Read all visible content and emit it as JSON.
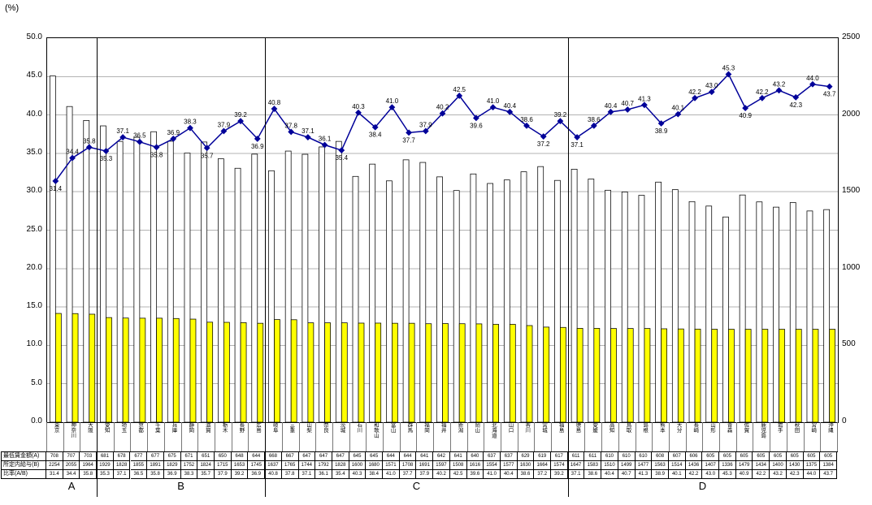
{
  "page": {
    "y_left_unit": "(%)"
  },
  "axes": {
    "left_ticks": [
      "0.0",
      "5.0",
      "10.0",
      "15.0",
      "20.0",
      "25.0",
      "30.0",
      "35.0",
      "40.0",
      "45.0",
      "50.0"
    ],
    "right_ticks": [
      "0",
      "500",
      "1000",
      "1500",
      "2000",
      "2500"
    ],
    "left_max": 50,
    "right_max": 2500
  },
  "table": {
    "row_labels": [
      "最低賃金額(A)",
      "所定内給与(B)",
      "比率(A/B)"
    ]
  },
  "groups": [
    {
      "label": "A",
      "count": 3
    },
    {
      "label": "B",
      "count": 10
    },
    {
      "label": "C",
      "count": 18
    },
    {
      "label": "D",
      "count": 16
    }
  ],
  "chart_data": {
    "type": "bar+line",
    "title": "",
    "categories": [
      "東京",
      "神奈川",
      "大阪",
      "愛知",
      "埼玉",
      "京都",
      "千葉",
      "兵庫",
      "静岡",
      "滋賀",
      "栃木",
      "長野",
      "広島",
      "岐阜",
      "三重",
      "山梨",
      "奈良",
      "茨城",
      "石川",
      "和歌山",
      "富山",
      "群馬",
      "福岡",
      "福井",
      "新潟",
      "岡山",
      "北海道",
      "山口",
      "香川",
      "宮城",
      "福島",
      "徳島",
      "愛媛",
      "高知",
      "鳥取",
      "島根",
      "熊本",
      "大分",
      "長崎",
      "山形",
      "青森",
      "佐賀",
      "鹿児島",
      "岩手",
      "秋田",
      "宮崎",
      "沖縄"
    ],
    "series": [
      {
        "name": "最低賃金額(A)",
        "type": "bar",
        "axis": "right",
        "color": "#FFFF00",
        "values": [
          708,
          707,
          703,
          681,
          678,
          677,
          677,
          675,
          671,
          651,
          650,
          648,
          644,
          668,
          667,
          647,
          647,
          647,
          645,
          645,
          644,
          644,
          641,
          642,
          641,
          640,
          637,
          637,
          629,
          619,
          617,
          611,
          611,
          610,
          610,
          610,
          608,
          607,
          606,
          605,
          605,
          605,
          605,
          605,
          605,
          605,
          605
        ]
      },
      {
        "name": "所定内給与(B)",
        "type": "bar",
        "axis": "right",
        "color": "#FFFFFF",
        "values": [
          2254,
          2055,
          1964,
          1929,
          1828,
          1855,
          1891,
          1829,
          1752,
          1824,
          1715,
          1653,
          1745,
          1637,
          1765,
          1744,
          1792,
          1828,
          1600,
          1680,
          1571,
          1708,
          1691,
          1597,
          1508,
          1616,
          1554,
          1577,
          1630,
          1664,
          1574,
          1647,
          1583,
          1510,
          1499,
          1477,
          1563,
          1514,
          1436,
          1407,
          1336,
          1479,
          1434,
          1400,
          1430,
          1375,
          1384
        ]
      },
      {
        "name": "比率(A/B)",
        "type": "line",
        "axis": "left",
        "color": "#000099",
        "values": [
          31.4,
          34.4,
          35.8,
          35.3,
          37.1,
          36.5,
          35.8,
          36.9,
          38.3,
          35.7,
          37.9,
          39.2,
          36.9,
          40.8,
          37.8,
          37.1,
          36.1,
          35.4,
          40.3,
          38.4,
          41.0,
          37.7,
          37.9,
          40.2,
          42.5,
          39.6,
          41.0,
          40.4,
          38.6,
          37.2,
          39.2,
          37.1,
          38.6,
          40.4,
          40.7,
          41.3,
          38.9,
          40.1,
          42.2,
          43.0,
          45.3,
          40.9,
          42.2,
          43.2,
          42.3,
          44.0,
          43.7
        ]
      }
    ],
    "ylim_left": [
      0,
      50
    ],
    "ylim_right": [
      0,
      2500
    ],
    "grid": true,
    "legend": "none"
  }
}
